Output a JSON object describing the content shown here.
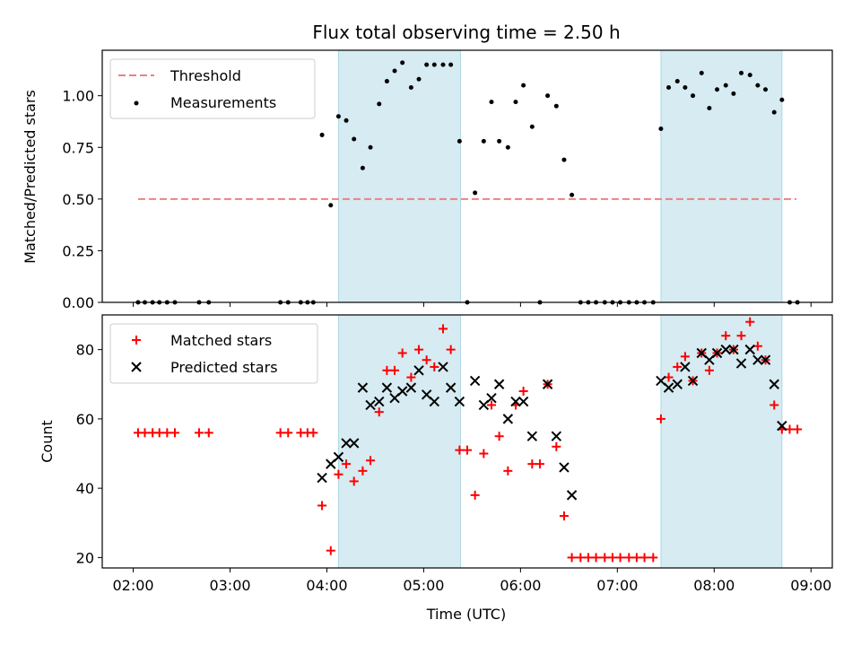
{
  "chart_data": [
    {
      "type": "scatter",
      "title": "Flux total observing time = 2.50 h",
      "xlabel": "",
      "ylabel": "Matched/Predicted stars",
      "ylim": [
        0,
        1.22
      ],
      "yticks": [
        "0.00",
        "0.25",
        "0.50",
        "0.75",
        "1.00"
      ],
      "ytick_values": [
        0,
        0.25,
        0.5,
        0.75,
        1.0
      ],
      "legend": {
        "placement": "top-left",
        "entries": [
          "Threshold",
          "Measurements"
        ]
      },
      "colors": {
        "threshold": "#f08080",
        "measurements": "#000000",
        "band": "#add8e6"
      },
      "series": [
        {
          "name": "Threshold",
          "style": "dashed-line",
          "x": [
            2.05,
            8.85
          ],
          "y": [
            0.5,
            0.5
          ]
        },
        {
          "name": "Measurements",
          "style": "dots",
          "x": [
            2.05,
            2.12,
            2.2,
            2.27,
            2.35,
            2.43,
            2.68,
            2.78,
            3.52,
            3.6,
            3.73,
            3.8,
            3.86,
            3.95,
            4.04,
            4.12,
            4.2,
            4.28,
            4.37,
            4.45,
            4.54,
            4.62,
            4.7,
            4.78,
            4.87,
            4.95,
            5.03,
            5.11,
            5.2,
            5.28,
            5.37,
            5.45,
            5.53,
            5.62,
            5.7,
            5.78,
            5.87,
            5.95,
            6.03,
            6.12,
            6.2,
            6.28,
            6.37,
            6.45,
            6.53,
            6.62,
            6.7,
            6.78,
            6.87,
            6.95,
            7.03,
            7.12,
            7.2,
            7.28,
            7.37,
            7.45,
            7.53,
            7.62,
            7.7,
            7.78,
            7.87,
            7.95,
            8.03,
            8.12,
            8.2,
            8.28,
            8.37,
            8.45,
            8.53,
            8.62,
            8.7,
            8.78,
            8.86
          ],
          "y": [
            0,
            0,
            0,
            0,
            0,
            0,
            0,
            0,
            0,
            0,
            0,
            0,
            0,
            0.81,
            0.47,
            0.9,
            0.88,
            0.79,
            0.65,
            0.75,
            0.96,
            1.07,
            1.12,
            1.16,
            1.04,
            1.08,
            1.15,
            1.15,
            1.15,
            1.15,
            0.78,
            0,
            0.53,
            0.78,
            0.97,
            0.78,
            0.75,
            0.97,
            1.05,
            0.85,
            0,
            1.0,
            0.95,
            0.69,
            0.52,
            0,
            0,
            0,
            0,
            0,
            0,
            0,
            0,
            0,
            0,
            0.84,
            1.04,
            1.07,
            1.04,
            1.0,
            1.11,
            0.94,
            1.03,
            1.05,
            1.01,
            1.11,
            1.1,
            1.05,
            1.03,
            0.92,
            0.98,
            0,
            0
          ]
        }
      ],
      "bands": [
        [
          4.12,
          5.38
        ],
        [
          7.45,
          8.7
        ]
      ]
    },
    {
      "type": "scatter",
      "title": "",
      "xlabel": "Time (UTC)",
      "ylabel": "Count",
      "ylim": [
        17,
        90
      ],
      "yticks": [
        "20",
        "40",
        "60",
        "80"
      ],
      "ytick_values": [
        20,
        40,
        60,
        80
      ],
      "xlim": [
        1.68,
        9.22
      ],
      "xticks": [
        "02:00",
        "03:00",
        "04:00",
        "05:00",
        "06:00",
        "07:00",
        "08:00",
        "09:00"
      ],
      "xtick_values": [
        2,
        3,
        4,
        5,
        6,
        7,
        8,
        9
      ],
      "legend": {
        "placement": "top-left",
        "entries": [
          "Matched stars",
          "Predicted stars"
        ]
      },
      "colors": {
        "matched": "#ff0000",
        "predicted": "#000000",
        "band": "#add8e6"
      },
      "series": [
        {
          "name": "Matched stars",
          "style": "plus",
          "x": [
            2.05,
            2.12,
            2.2,
            2.27,
            2.35,
            2.43,
            2.68,
            2.78,
            3.52,
            3.6,
            3.73,
            3.8,
            3.86,
            3.95,
            4.04,
            4.12,
            4.2,
            4.28,
            4.37,
            4.45,
            4.54,
            4.62,
            4.7,
            4.78,
            4.87,
            4.95,
            5.03,
            5.11,
            5.2,
            5.28,
            5.37,
            5.45,
            5.53,
            5.62,
            5.7,
            5.78,
            5.87,
            5.95,
            6.03,
            6.12,
            6.2,
            6.28,
            6.37,
            6.45,
            6.53,
            6.62,
            6.7,
            6.78,
            6.87,
            6.95,
            7.03,
            7.12,
            7.2,
            7.28,
            7.37,
            7.45,
            7.53,
            7.62,
            7.7,
            7.78,
            7.87,
            7.95,
            8.03,
            8.12,
            8.2,
            8.28,
            8.37,
            8.45,
            8.53,
            8.62,
            8.7,
            8.78,
            8.86
          ],
          "y": [
            56,
            56,
            56,
            56,
            56,
            56,
            56,
            56,
            56,
            56,
            56,
            56,
            56,
            35,
            22,
            44,
            47,
            42,
            45,
            48,
            62,
            74,
            74,
            79,
            72,
            80,
            77,
            75,
            86,
            80,
            51,
            51,
            38,
            50,
            64,
            55,
            45,
            64,
            68,
            47,
            47,
            70,
            52,
            32,
            20,
            20,
            20,
            20,
            20,
            20,
            20,
            20,
            20,
            20,
            20,
            60,
            72,
            75,
            78,
            71,
            79,
            74,
            79,
            84,
            80,
            84,
            88,
            81,
            77,
            64,
            57,
            57,
            57
          ]
        },
        {
          "name": "Predicted stars",
          "style": "cross",
          "x": [
            3.95,
            4.04,
            4.12,
            4.2,
            4.28,
            4.37,
            4.45,
            4.54,
            4.62,
            4.7,
            4.78,
            4.87,
            4.95,
            5.03,
            5.11,
            5.2,
            5.28,
            5.37,
            5.53,
            5.62,
            5.7,
            5.78,
            5.87,
            5.95,
            6.03,
            6.12,
            6.28,
            6.37,
            6.45,
            6.53,
            7.45,
            7.53,
            7.62,
            7.7,
            7.78,
            7.87,
            7.95,
            8.03,
            8.12,
            8.2,
            8.28,
            8.37,
            8.45,
            8.53,
            8.62,
            8.7
          ],
          "y": [
            43,
            47,
            49,
            53,
            53,
            69,
            64,
            65,
            69,
            66,
            68,
            69,
            74,
            67,
            65,
            75,
            69,
            65,
            71,
            64,
            66,
            70,
            60,
            65,
            65,
            55,
            70,
            55,
            46,
            38,
            71,
            69,
            70,
            75,
            71,
            79,
            77,
            79,
            80,
            80,
            76,
            80,
            77,
            77,
            70,
            58
          ]
        }
      ],
      "bands": [
        [
          4.12,
          5.38
        ],
        [
          7.45,
          8.7
        ]
      ]
    }
  ]
}
